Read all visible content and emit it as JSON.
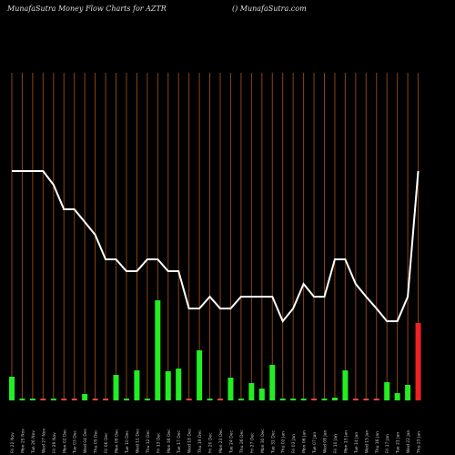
{
  "chart_data": {
    "type": "bar-line",
    "title": "MunafaSutra  Money Flow  Charts for AZTR",
    "subtitle": "() MunafaSutra.com",
    "categories": [
      "Fri 22 Nov",
      "Mon 25 Nov",
      "Tue 26 Nov",
      "Wed 27 Nov",
      "Fri 29 Nov",
      "Mon 02 Dec",
      "Tue 03 Dec",
      "Wed 04 Dec",
      "Thu 05 Dec",
      "Fri 06 Dec",
      "Mon 09 Dec",
      "Tue 10 Dec",
      "Wed 11 Dec",
      "Thu 12 Dec",
      "Fri 13 Dec",
      "Mon 16 Dec",
      "Tue 17 Dec",
      "Wed 18 Dec",
      "Thu 19 Dec",
      "Fri 20 Dec",
      "Mon 23 Dec",
      "Tue 24 Dec",
      "Thu 26 Dec",
      "Fri 27 Dec",
      "Mon 30 Dec",
      "Tue 31 Dec",
      "Thu 02 Jan",
      "Fri 03 Jan",
      "Mon 06 Jan",
      "Tue 07 Jan",
      "Wed 08 Jan",
      "Fri 10 Jan",
      "Mon 13 Jan",
      "Tue 14 Jan",
      "Wed 15 Jan",
      "Thu 16 Jan",
      "Fri 17 Jan",
      "Tue 21 Jan",
      "Wed 22 Jan",
      "Thu 23 Jan"
    ],
    "series": [
      {
        "name": "Volume",
        "values": [
          26,
          2,
          2,
          2,
          2,
          2,
          2,
          7,
          2,
          2,
          28,
          2,
          33,
          2,
          110,
          32,
          35,
          2,
          55,
          2,
          2,
          25,
          2,
          19,
          13,
          39,
          2,
          2,
          2,
          2,
          2,
          3,
          33,
          2,
          2,
          2,
          20,
          8,
          17,
          85
        ],
        "colors": [
          "#22ee22",
          "#22ee22",
          "#22ee22",
          "#ee4444",
          "#22ee22",
          "#ee4444",
          "#ee4444",
          "#22ee22",
          "#ee4444",
          "#ee4444",
          "#22ee22",
          "#22ee22",
          "#22ee22",
          "#22ee22",
          "#22ee22",
          "#22ee22",
          "#22ee22",
          "#ee4444",
          "#22ee22",
          "#22ee22",
          "#ee4444",
          "#22ee22",
          "#22ee22",
          "#22ee22",
          "#22ee22",
          "#22ee22",
          "#22ee22",
          "#22ee22",
          "#22ee22",
          "#ee4444",
          "#22ee22",
          "#22ee22",
          "#22ee22",
          "#ee4444",
          "#ee4444",
          "#ee4444",
          "#22ee22",
          "#22ee22",
          "#22ee22",
          "#ee2222"
        ]
      },
      {
        "name": "Money Flow",
        "color": "#ffffff",
        "values": [
          252,
          252,
          252,
          252,
          237,
          210,
          210,
          196,
          182,
          155,
          155,
          142,
          142,
          155,
          155,
          142,
          142,
          101,
          101,
          114,
          101,
          101,
          114,
          114,
          114,
          114,
          87,
          101,
          128,
          114,
          114,
          155,
          155,
          128,
          114,
          101,
          87,
          87,
          114,
          252
        ]
      }
    ],
    "ylim": [
      0,
      360
    ],
    "grid_color": "#8b4513"
  }
}
